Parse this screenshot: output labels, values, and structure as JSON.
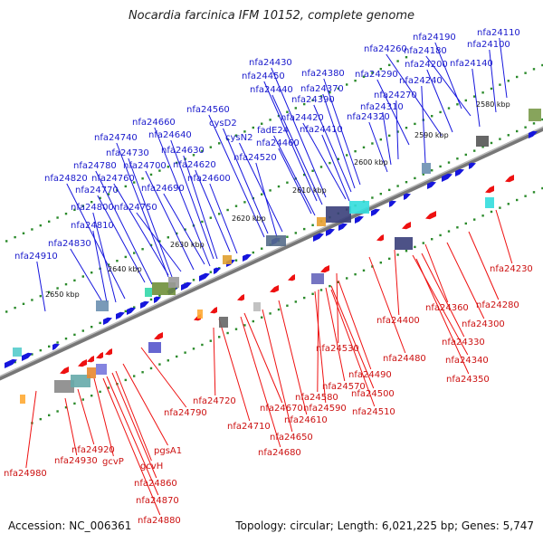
{
  "title": "Nocardia farcinica IFM 10152, complete genome",
  "footer": {
    "accession": "Accession: NC_006361",
    "topology": "Topology: circular; Length: 6,021,225 bp; Genes: 5,747"
  },
  "colors": {
    "plus_strand": "#1616dd",
    "minus_strand": "#ee1111",
    "axis": "#777777",
    "dots": "#2a8a2a"
  },
  "ticks": [
    "2580 kbp",
    "2590 kbp",
    "2600 kbp",
    "2610 kbp",
    "2620 kbp",
    "2630 kbp",
    "2640 kbp",
    "2650 kbp"
  ],
  "upper_labels": [
    "nfa24110",
    "nfa24100",
    "nfa24190",
    "nfa24180",
    "nfa24260",
    "nfa24200",
    "nfa24140",
    "nfa24290",
    "nfa24240",
    "nfa24270",
    "nfa24310",
    "nfa24320",
    "nfa24430",
    "nfa24380",
    "nfa24450",
    "nfa24370",
    "nfa24440",
    "nfa24390",
    "nfa24420",
    "nfa24410",
    "fadE24",
    "nfa24460",
    "nfa24560",
    "cysD2",
    "cysN2",
    "nfa24520",
    "nfa24660",
    "nfa24640",
    "nfa24740",
    "nfa24630",
    "nfa24730",
    "nfa24620",
    "nfa24780",
    "nfa24700",
    "nfa24820",
    "nfa24760",
    "nfa24690",
    "nfa24600",
    "nfa24770",
    "nfa24800",
    "nfa24750",
    "nfa24810",
    "nfa24830",
    "nfa24910"
  ],
  "lower_labels": [
    "nfa24230",
    "nfa24280",
    "nfa24360",
    "nfa24300",
    "nfa24400",
    "nfa24330",
    "nfa24480",
    "nfa24340",
    "nfa24530",
    "nfa24350",
    "nfa24490",
    "nfa24570",
    "nfa24500",
    "nfa24580",
    "nfa24590",
    "nfa24510",
    "nfa24720",
    "nfa24670",
    "nfa24610",
    "nfa24790",
    "nfa24710",
    "nfa24650",
    "nfa24680",
    "nfa24980",
    "nfa24930",
    "nfa24920",
    "gcvP",
    "pgsA1",
    "gcvH",
    "nfa24860",
    "nfa24870",
    "nfa24880"
  ]
}
